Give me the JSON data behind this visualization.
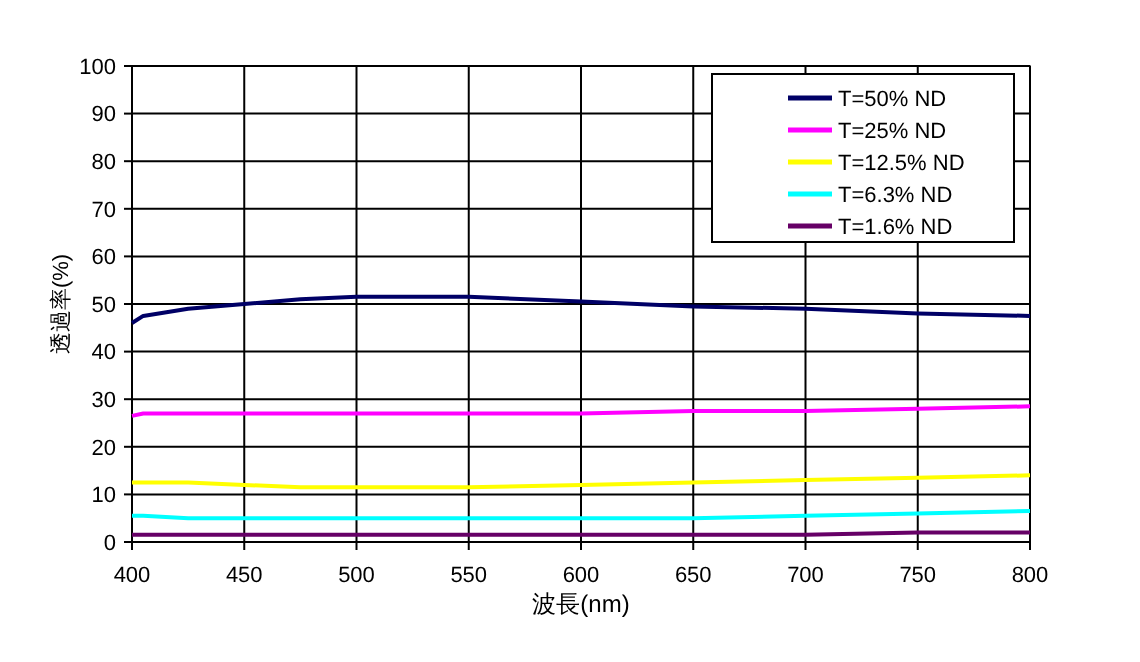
{
  "chart_data": {
    "type": "line",
    "xlabel": "波長(nm)",
    "ylabel": "透過率(%)",
    "x": [
      400,
      405,
      425,
      450,
      475,
      500,
      550,
      600,
      650,
      700,
      750,
      800
    ],
    "xlim": [
      400,
      800
    ],
    "xticks": [
      400,
      450,
      500,
      550,
      600,
      650,
      700,
      750,
      800
    ],
    "ylim": [
      0,
      100
    ],
    "yticks": [
      0,
      10,
      20,
      30,
      40,
      50,
      60,
      70,
      80,
      90,
      100
    ],
    "grid": true,
    "legend": "top right",
    "marker": "none",
    "line_style": "solid",
    "series": [
      {
        "name": "T=50% ND",
        "color": "#000066",
        "values": [
          46,
          47.5,
          49,
          50,
          51,
          51.5,
          51.5,
          50.5,
          49.5,
          49,
          48,
          47.5
        ]
      },
      {
        "name": "T=25% ND",
        "color": "#ff00ff",
        "values": [
          26.5,
          27,
          27,
          27,
          27,
          27,
          27,
          27,
          27.5,
          27.5,
          28,
          28.5
        ]
      },
      {
        "name": "T=12.5% ND",
        "color": "#ffff00",
        "values": [
          12.5,
          12.5,
          12.5,
          12,
          11.5,
          11.5,
          11.5,
          12,
          12.5,
          13,
          13.5,
          14
        ]
      },
      {
        "name": "T=6.3% ND",
        "color": "#00ffff",
        "values": [
          5.5,
          5.5,
          5,
          5,
          5,
          5,
          5,
          5,
          5,
          5.5,
          6,
          6.5
        ]
      },
      {
        "name": "T=1.6% ND",
        "color": "#660066",
        "values": [
          1.5,
          1.5,
          1.5,
          1.5,
          1.5,
          1.5,
          1.5,
          1.5,
          1.5,
          1.5,
          2,
          2
        ]
      }
    ]
  }
}
